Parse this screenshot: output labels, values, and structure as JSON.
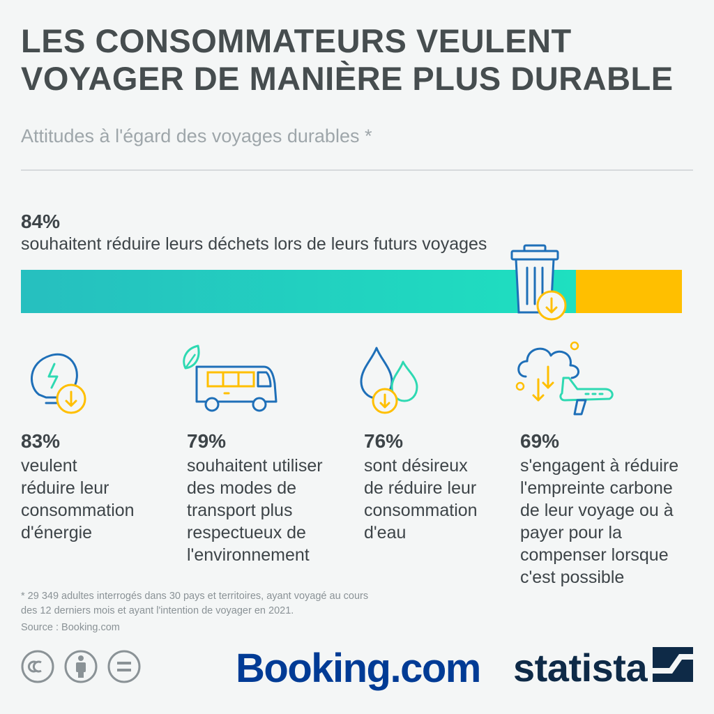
{
  "title_line1": "LES CONSOMMATEURS VEULENT",
  "title_line2": "VOYAGER DE MANIÈRE PLUS DURABLE",
  "subtitle": "Attitudes à l'égard des voyages durables *",
  "colors": {
    "teal": "#1ee0c0",
    "teal_dark": "#26bfbf",
    "yellow": "#ffbf00",
    "icon_blue": "#1e6fb8",
    "icon_mint": "#2ed9b2",
    "text": "#3d4448",
    "muted": "#9ea6aa"
  },
  "chart_data": {
    "type": "bar",
    "categories": [
      "souhaitent réduire leurs déchets lors de leurs futurs voyages",
      "veulent réduire leur consommation d'énergie",
      "souhaitent utiliser des modes de transport plus respectueux de l'environnement",
      "sont désireux de réduire leur consommation d'eau",
      "s'engagent à réduire l'empreinte carbone de leur voyage ou à payer pour la compenser lorsque c'est possible"
    ],
    "values": [
      84,
      83,
      79,
      76,
      69
    ],
    "unit": "%",
    "ylim": [
      0,
      100
    ]
  },
  "main_stat": {
    "pct": "84%",
    "label": "souhaitent réduire leurs déchets lors de leurs futurs voyages",
    "value": 84,
    "icon": "trash-can-icon"
  },
  "stats": [
    {
      "pct": "83%",
      "lines": [
        "veulent",
        "réduire leur",
        "consommation",
        "d'énergie"
      ],
      "icon": "lightbulb-icon"
    },
    {
      "pct": "79%",
      "lines": [
        "souhaitent utiliser",
        "des modes de",
        "transport plus",
        "respectueux de",
        "l'environnement"
      ],
      "icon": "bus-icon"
    },
    {
      "pct": "76%",
      "lines": [
        "sont désireux",
        "de réduire leur",
        "consommation",
        "d'eau"
      ],
      "icon": "water-drop-icon"
    },
    {
      "pct": "69%",
      "lines": [
        "s'engagent à réduire",
        "l'empreinte carbone",
        "de leur voyage ou à",
        "payer pour la",
        "compenser lorsque",
        "c'est possible"
      ],
      "icon": "cloud-plane-icon"
    }
  ],
  "footnote_line1": "* 29 349 adultes interrogés dans 30 pays et territoires, ayant voyagé au cours",
  "footnote_line2": "des 12 derniers mois et ayant l'intention de voyager en 2021.",
  "source": "Source : Booking.com",
  "cc_icons": [
    "cc-license-icon",
    "attribution-icon",
    "no-derivatives-icon"
  ],
  "logos": {
    "booking": "Booking.com",
    "statista": "statista"
  }
}
